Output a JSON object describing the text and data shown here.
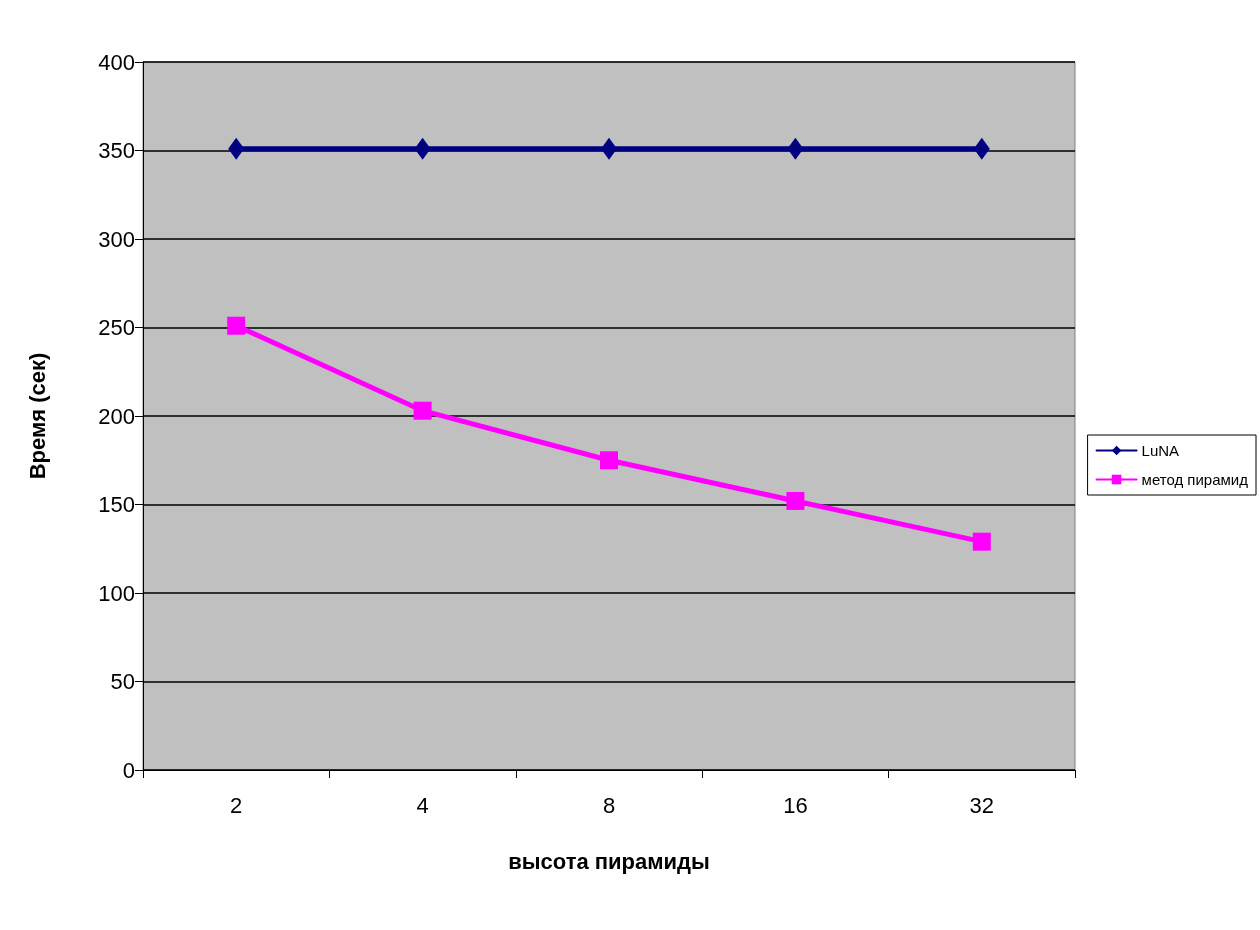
{
  "chart_data": {
    "type": "line",
    "xlabel": "высота пирамиды",
    "ylabel": "Время (сек)",
    "categories": [
      "2",
      "4",
      "8",
      "16",
      "32"
    ],
    "series": [
      {
        "name": "LuNA",
        "color": "#000080",
        "marker": "diamond",
        "values": [
          351,
          351,
          351,
          351,
          351
        ]
      },
      {
        "name": "метод пирамид",
        "color": "#ff00ff",
        "marker": "square",
        "values": [
          251,
          203,
          175,
          152,
          129
        ]
      }
    ],
    "ylim": [
      0,
      400
    ],
    "yticks": [
      0,
      50,
      100,
      150,
      200,
      250,
      300,
      350,
      400
    ],
    "grid": "y",
    "legend": "right",
    "line_style": "solid"
  }
}
